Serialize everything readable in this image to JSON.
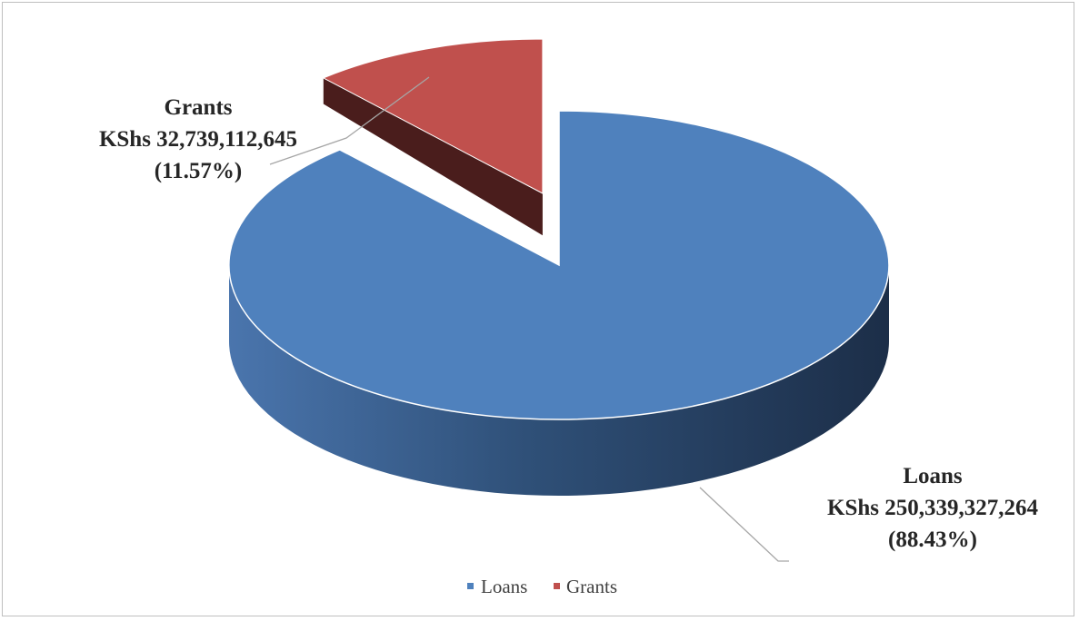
{
  "chart_data": {
    "type": "pie",
    "slices": [
      {
        "name": "Loans",
        "value": 250339327264,
        "percent": 88.43,
        "amount_label": "KShs 250,339,327,264",
        "percent_label": "(88.43%)",
        "color": "#4f81bd",
        "side_color": "#2c4a6f"
      },
      {
        "name": "Grants",
        "value": 32739112645,
        "percent": 11.57,
        "amount_label": "KShs 32,739,112,645",
        "percent_label": "(11.57%)",
        "color": "#c0504d",
        "side_color": "#4a1d1c"
      }
    ],
    "legend": {
      "position": "bottom",
      "entries": [
        {
          "label": "Loans",
          "color": "#4f81bd"
        },
        {
          "label": "Grants",
          "color": "#c0504d"
        }
      ]
    },
    "style": "3d-exploded"
  }
}
